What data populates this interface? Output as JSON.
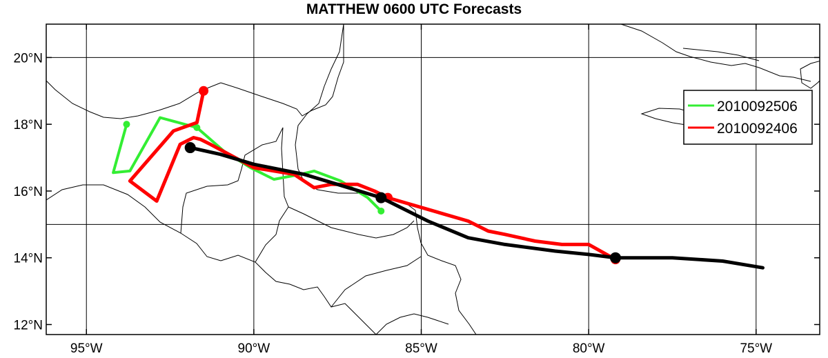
{
  "title": "MATTHEW 0600 UTC Forecasts",
  "chart_data": {
    "type": "line",
    "title": "MATTHEW 0600 UTC Forecasts",
    "x_axis": {
      "range": [
        -96.2,
        -73.1
      ],
      "ticks": [
        -95,
        -90,
        -85,
        -80,
        -75
      ],
      "tick_labels": [
        "95°W",
        "90°W",
        "85°W",
        "80°W",
        "75°W"
      ]
    },
    "y_axis": {
      "range": [
        11.7,
        21.0
      ],
      "ticks": [
        12,
        14,
        16,
        18,
        20
      ],
      "tick_labels": [
        "12°N",
        "14°N",
        "16°N",
        "18°N",
        "20°N"
      ]
    },
    "grid": true,
    "legend_position": "right",
    "legend": [
      "2010092506",
      "2010092406"
    ],
    "series": [
      {
        "name": "2010092506",
        "color": "#33ee33",
        "points": [
          [
            -86.2,
            15.4
          ],
          [
            -86.6,
            15.8
          ],
          [
            -87.4,
            16.3
          ],
          [
            -88.2,
            16.6
          ],
          [
            -88.6,
            16.5
          ],
          [
            -89.4,
            16.35
          ],
          [
            -90.1,
            16.7
          ],
          [
            -90.9,
            17.2
          ],
          [
            -91.7,
            17.9
          ],
          [
            -92.8,
            18.2
          ],
          [
            -93.7,
            16.6
          ],
          [
            -94.2,
            16.55
          ],
          [
            -93.8,
            18.0
          ]
        ],
        "markers": [
          [
            -86.2,
            15.4
          ],
          [
            -91.7,
            17.9
          ],
          [
            -93.8,
            18.0
          ]
        ]
      },
      {
        "name": "2010092406",
        "color": "#ff0000",
        "points": [
          [
            -79.2,
            13.95
          ],
          [
            -80.0,
            14.4
          ],
          [
            -80.8,
            14.4
          ],
          [
            -81.6,
            14.5
          ],
          [
            -82.5,
            14.7
          ],
          [
            -83.0,
            14.8
          ],
          [
            -83.6,
            15.1
          ],
          [
            -86.0,
            15.8
          ],
          [
            -86.4,
            16.0
          ],
          [
            -86.9,
            16.2
          ],
          [
            -87.7,
            16.2
          ],
          [
            -88.2,
            16.1
          ],
          [
            -88.8,
            16.5
          ],
          [
            -90.0,
            16.7
          ],
          [
            -91.3,
            17.4
          ],
          [
            -91.6,
            17.55
          ],
          [
            -91.8,
            17.6
          ],
          [
            -92.2,
            17.4
          ],
          [
            -92.9,
            15.7
          ],
          [
            -93.7,
            16.3
          ],
          [
            -92.4,
            17.8
          ],
          [
            -91.7,
            18.05
          ],
          [
            -91.5,
            19.0
          ]
        ],
        "markers": [
          [
            -79.2,
            13.95
          ],
          [
            -86.0,
            15.8
          ],
          [
            -91.5,
            19.0
          ]
        ]
      },
      {
        "name": "",
        "color": "#000000",
        "points": [
          [
            -74.8,
            13.7
          ],
          [
            -76.0,
            13.9
          ],
          [
            -77.5,
            14.0
          ],
          [
            -79.2,
            14.0
          ],
          [
            -80.0,
            14.1
          ],
          [
            -81.0,
            14.2
          ],
          [
            -82.5,
            14.4
          ],
          [
            -83.6,
            14.6
          ],
          [
            -84.8,
            15.1
          ],
          [
            -86.2,
            15.8
          ],
          [
            -87.5,
            16.2
          ],
          [
            -88.5,
            16.5
          ],
          [
            -90.0,
            16.8
          ],
          [
            -91.0,
            17.1
          ],
          [
            -91.9,
            17.3
          ]
        ],
        "markers": [
          [
            -79.2,
            14.0
          ],
          [
            -86.2,
            15.8
          ],
          [
            -91.9,
            17.3
          ]
        ]
      }
    ]
  },
  "colors": {
    "green": "#33ee33",
    "red": "#ff0000",
    "black": "#000000",
    "coast": "#000000"
  }
}
